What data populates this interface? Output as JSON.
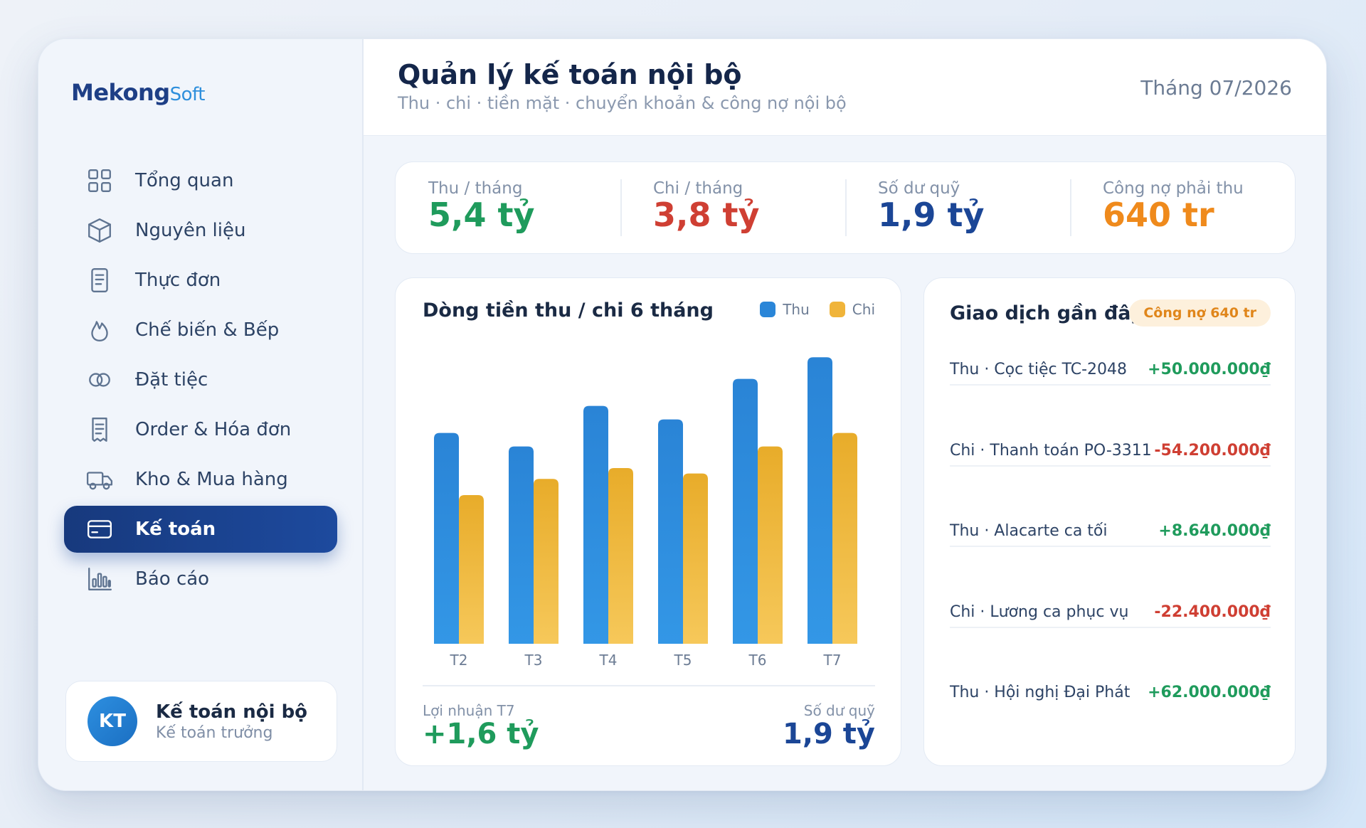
{
  "brand": {
    "part1": "Mekong",
    "part2": "Soft"
  },
  "sidebar": {
    "items": [
      {
        "label": "Tổng quan",
        "icon": "grid-icon"
      },
      {
        "label": "Nguyên liệu",
        "icon": "box-icon"
      },
      {
        "label": "Thực đơn",
        "icon": "document-icon"
      },
      {
        "label": "Chế biến & Bếp",
        "icon": "flame-icon"
      },
      {
        "label": "Đặt tiệc",
        "icon": "rings-icon"
      },
      {
        "label": "Order & Hóa đơn",
        "icon": "receipt-icon"
      },
      {
        "label": "Kho & Mua hàng",
        "icon": "truck-icon"
      },
      {
        "label": "Kế toán",
        "icon": "wallet-icon",
        "active": true
      },
      {
        "label": "Báo cáo",
        "icon": "bar-chart-icon"
      }
    ]
  },
  "user": {
    "initials": "KT",
    "name": "Kế toán nội bộ",
    "role": "Kế toán trưởng"
  },
  "header": {
    "title": "Quản lý kế toán nội bộ",
    "subtitle": "Thu · chi · tiền mặt · chuyển khoản & công nợ nội bộ",
    "month": "Tháng 07/2026"
  },
  "kpis": [
    {
      "label": "Thu / tháng",
      "value": "5,4 tỷ",
      "color": "#1f9b5c"
    },
    {
      "label": "Chi / tháng",
      "value": "3,8 tỷ",
      "color": "#cf3f33"
    },
    {
      "label": "Số dư quỹ",
      "value": "1,9 tỷ",
      "color": "#1b4696"
    },
    {
      "label": "Công nợ phải thu",
      "value": "640 tr",
      "color": "#ef8a1c"
    }
  ],
  "cashflow": {
    "title": "Dòng tiền thu / chi 6 tháng",
    "profit_label": "Lợi nhuận T7",
    "profit_value": "+1,6 tỷ",
    "fund_label": "Số dư quỹ",
    "fund_value": "1,9 tỷ"
  },
  "chart_data": {
    "type": "bar",
    "title": "Dòng tiền thu / chi 6 tháng",
    "categories": [
      "T2",
      "T3",
      "T4",
      "T5",
      "T6",
      "T7"
    ],
    "series": [
      {
        "name": "Thu",
        "color": "#2a86d8",
        "values": [
          78,
          73,
          88,
          83,
          98,
          106
        ]
      },
      {
        "name": "Chi",
        "color": "#f0b43a",
        "values": [
          55,
          61,
          65,
          63,
          73,
          78
        ]
      }
    ],
    "ylim": [
      0,
      110
    ],
    "grid": false,
    "legend": "top-right",
    "xlabel": "",
    "ylabel": ""
  },
  "transactions": {
    "title": "Giao dịch gần đây",
    "badge": "Công nợ 640 tr",
    "items": [
      {
        "desc": "Thu · Cọc tiệc TC-2048",
        "amount": "+50.000.000₫",
        "type": "in"
      },
      {
        "desc": "Chi · Thanh toán PO-3311",
        "amount": "-54.200.000₫",
        "type": "out"
      },
      {
        "desc": "Thu · Alacarte ca tối",
        "amount": "+8.640.000₫",
        "type": "in"
      },
      {
        "desc": "Chi · Lương ca phục vụ",
        "amount": "-22.400.000₫",
        "type": "out"
      },
      {
        "desc": "Thu · Hội nghị Đại Phát",
        "amount": "+62.000.000₫",
        "type": "in"
      }
    ]
  }
}
